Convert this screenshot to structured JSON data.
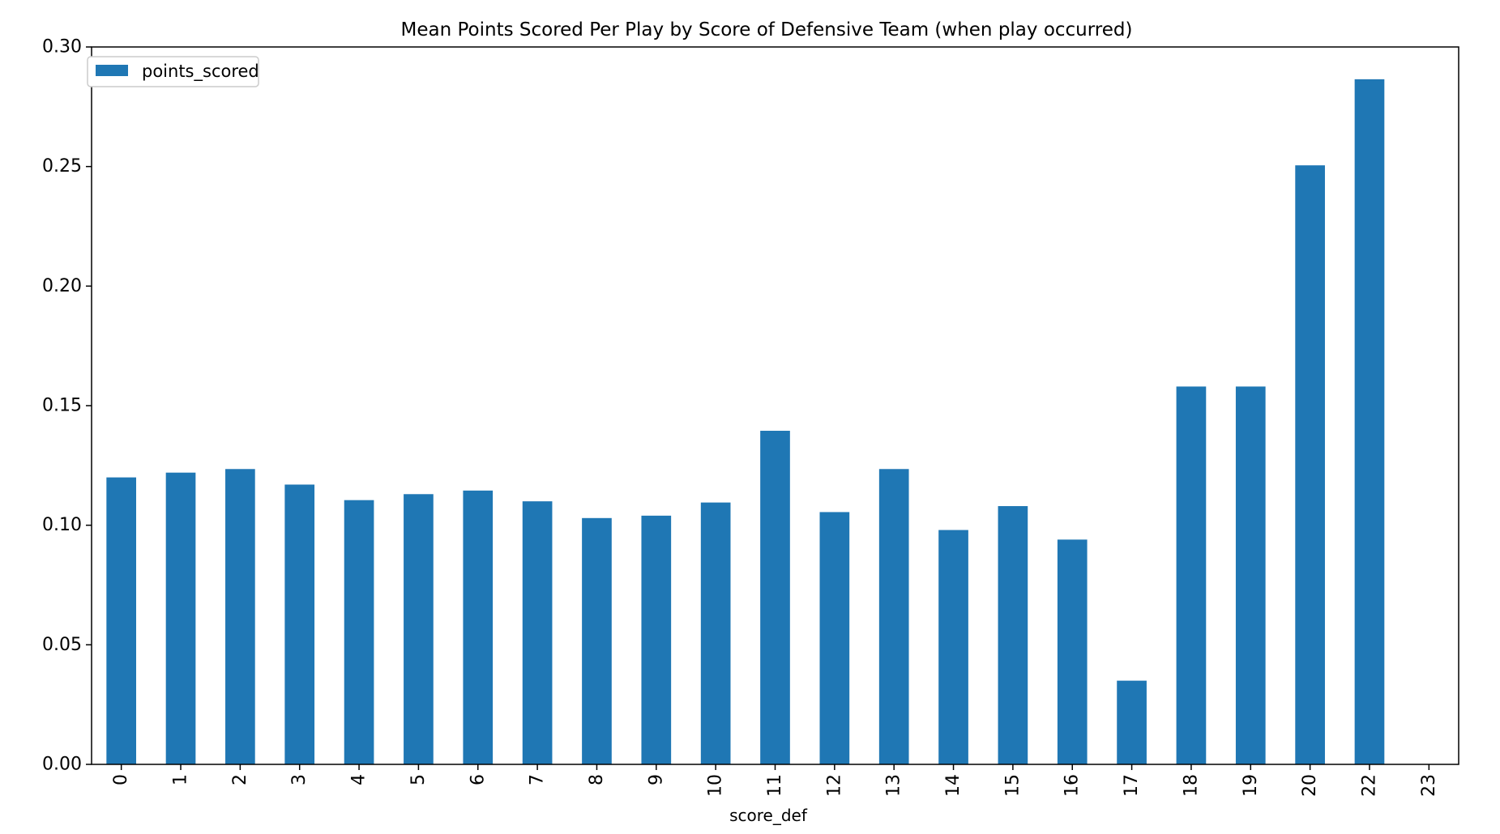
{
  "chart_data": {
    "type": "bar",
    "title": "Mean Points Scored Per Play by Score of Defensive Team (when play occurred)",
    "xlabel": "score_def",
    "ylabel": "",
    "categories": [
      "0",
      "1",
      "2",
      "3",
      "4",
      "5",
      "6",
      "7",
      "8",
      "9",
      "10",
      "11",
      "12",
      "13",
      "14",
      "15",
      "16",
      "17",
      "18",
      "19",
      "20",
      "22",
      "23"
    ],
    "series": [
      {
        "name": "points_scored",
        "color": "#1f77b4",
        "values": [
          0.12,
          0.122,
          0.1235,
          0.117,
          0.1105,
          0.113,
          0.1145,
          0.11,
          0.103,
          0.104,
          0.1095,
          0.1395,
          0.1055,
          0.1235,
          0.098,
          0.108,
          0.094,
          0.035,
          0.158,
          0.158,
          0.2505,
          0.2865,
          0.0
        ]
      }
    ],
    "ylim": [
      0,
      0.3
    ],
    "yticks": [
      "0.00",
      "0.05",
      "0.10",
      "0.15",
      "0.20",
      "0.25",
      "0.30"
    ],
    "grid": false,
    "legend_position": "upper-left",
    "x_tick_rotation": "vertical"
  }
}
